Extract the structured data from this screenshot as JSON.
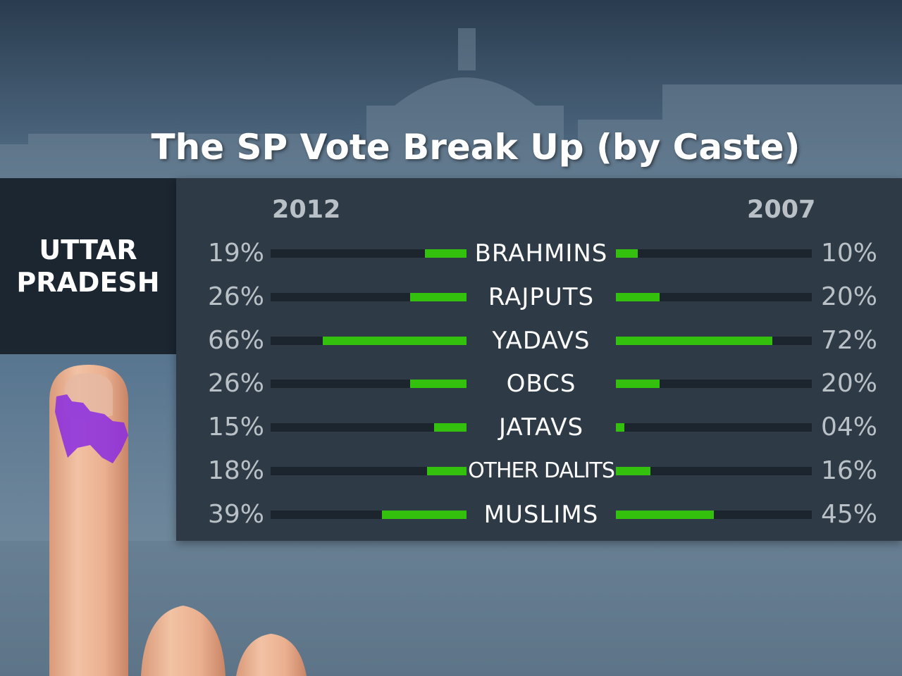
{
  "header": {
    "title": "The SP Vote Break Up (by Caste)"
  },
  "region": {
    "line1": "UTTAR",
    "line2": "PRADESH"
  },
  "columns": {
    "left_year": "2012",
    "right_year": "2007"
  },
  "colors": {
    "bar_fill": "#34c10e",
    "bar_track": "#1c252e",
    "panel": "#2e3a46",
    "region_box": "#1b2631",
    "ink": "#8a2be2"
  },
  "chart_data": {
    "type": "bar",
    "title": "The SP Vote Break Up (by Caste)",
    "categories": [
      "BRAHMINS",
      "RAJPUTS",
      "YADAVS",
      "OBCS",
      "JATAVS",
      "OTHER DALITS",
      "MUSLIMS"
    ],
    "series": [
      {
        "name": "2012",
        "values": [
          19,
          26,
          66,
          26,
          15,
          18,
          39
        ],
        "labels": [
          "19%",
          "26%",
          "66%",
          "26%",
          "15%",
          "18%",
          "39%"
        ]
      },
      {
        "name": "2007",
        "values": [
          10,
          20,
          72,
          20,
          4,
          16,
          45
        ],
        "labels": [
          "10%",
          "20%",
          "72%",
          "20%",
          "04%",
          "16%",
          "45%"
        ]
      }
    ],
    "xlim": [
      0,
      90
    ],
    "layout": "mirrored horizontal bars, 2012 extends left, 2007 extends right"
  }
}
